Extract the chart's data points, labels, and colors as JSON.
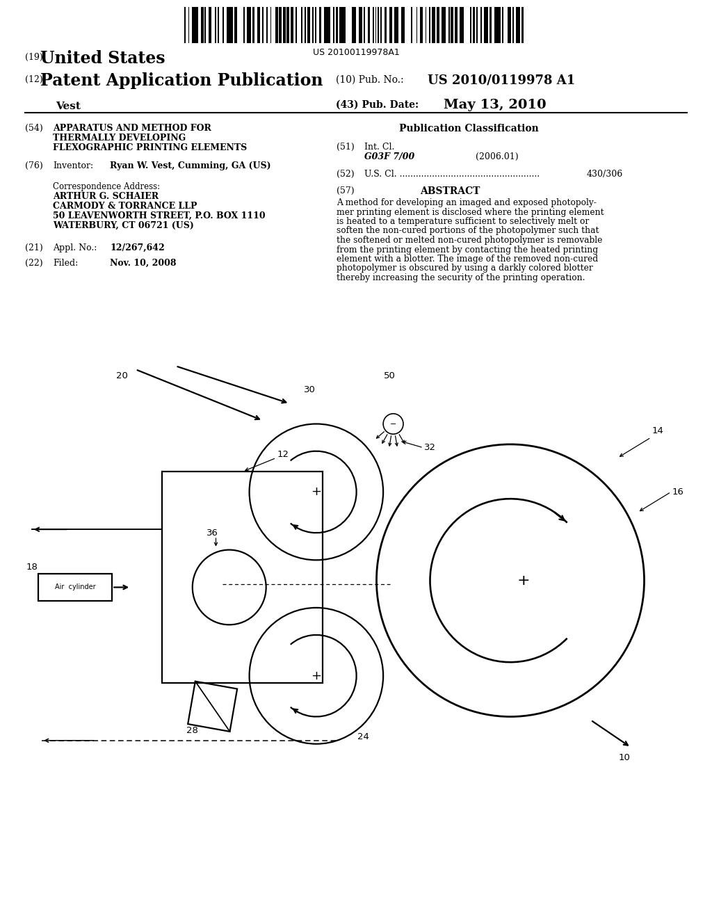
{
  "bg_color": "#ffffff",
  "barcode_text": "US 20100119978A1",
  "header_country_num": "(19)",
  "header_country": "United States",
  "header_type_num": "(12)",
  "header_type": "Patent Application Publication",
  "header_name": "Vest",
  "header_pub_num_label": "(10) Pub. No.:",
  "header_pub_num": "US 2010/0119978 A1",
  "header_date_label": "(43) Pub. Date:",
  "header_date": "May 13, 2010",
  "s54_num": "(54)",
  "s54_line1": "APPARATUS AND METHOD FOR",
  "s54_line2": "THERMALLY DEVELOPING",
  "s54_line3": "FLEXOGRAPHIC PRINTING ELEMENTS",
  "s76_num": "(76)",
  "s76_label": "Inventor:",
  "s76_value": "Ryan W. Vest, Cumming, GA (US)",
  "corr_label": "Correspondence Address:",
  "corr_line1": "ARTHUR G. SCHAIER",
  "corr_line2": "CARMODY & TORRANCE LLP",
  "corr_line3": "50 LEAVENWORTH STREET, P.O. BOX 1110",
  "corr_line4": "WATERBURY, CT 06721 (US)",
  "s21_num": "(21)",
  "s21_label": "Appl. No.:",
  "s21_value": "12/267,642",
  "s22_num": "(22)",
  "s22_label": "Filed:",
  "s22_value": "Nov. 10, 2008",
  "pub_class_title": "Publication Classification",
  "s51_num": "(51)",
  "s51_label": "Int. Cl.",
  "s51_code": "G03F 7/00",
  "s51_year": "(2006.01)",
  "s52_num": "(52)",
  "s52_label": "U.S. Cl. ",
  "s52_dots": "....................................................",
  "s52_value": "430/306",
  "s57_num": "(57)",
  "s57_title": "ABSTRACT",
  "abstract": "A method for developing an imaged and exposed photopolymer printing element is disclosed where the printing element is heated to a temperature sufficient to selectively melt or soften the non-cured portions of the photopolymer such that the softened or melted non-cured photopolymer is removable from the printing element by contacting the heated printing element with a blotter. The image of the removed non-cured photopolymer is obscured by using a darkly colored blotter thereby increasing the security of the printing operation."
}
